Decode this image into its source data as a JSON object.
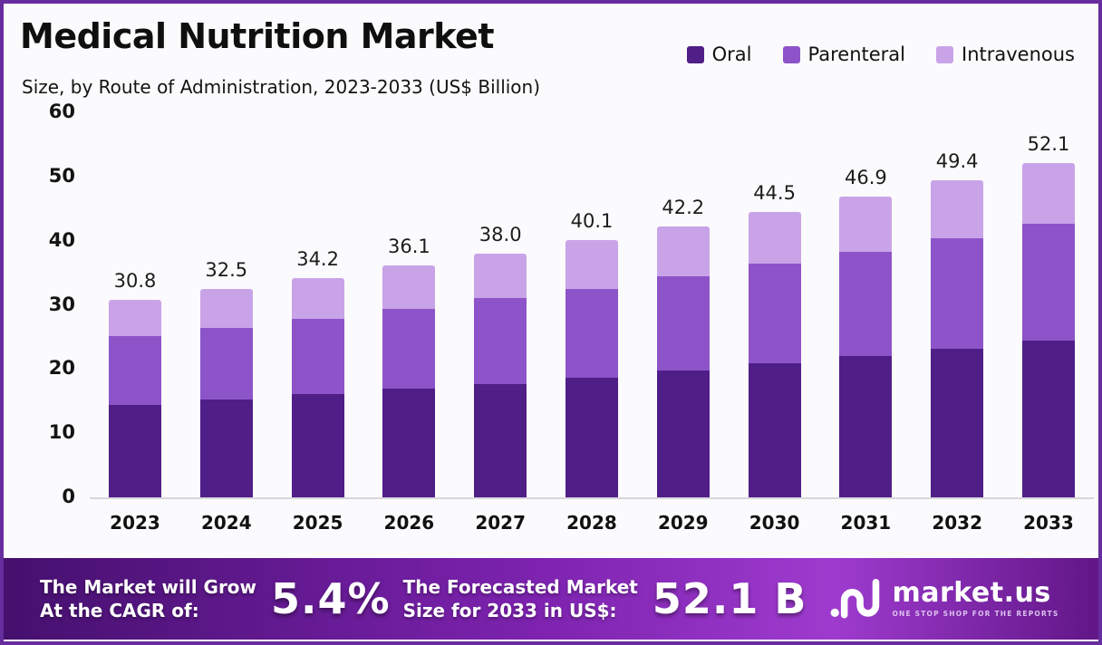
{
  "header": {
    "title": "Medical Nutrition Market",
    "subtitle": "Size, by Route of Administration, 2023-2033 (US$ Billion)"
  },
  "colors": {
    "oral": "#4f1e87",
    "parenteral": "#8d54c9",
    "intravenous": "#c9a3e8",
    "page_border": "#662d9e"
  },
  "chart_data": {
    "type": "bar",
    "stacked": true,
    "title": "Medical Nutrition Market Size, by Route of Administration, 2023-2033 (US$ Billion)",
    "categories": [
      "2023",
      "2024",
      "2025",
      "2026",
      "2027",
      "2028",
      "2029",
      "2030",
      "2031",
      "2032",
      "2033"
    ],
    "series": [
      {
        "name": "Oral",
        "color": "#4f1e87",
        "values": [
          14.4,
          15.2,
          16.1,
          16.9,
          17.6,
          18.7,
          19.7,
          20.9,
          22.0,
          23.2,
          24.4
        ]
      },
      {
        "name": "Parenteral",
        "color": "#8d54c9",
        "values": [
          10.8,
          11.2,
          11.7,
          12.5,
          13.5,
          13.8,
          14.8,
          15.5,
          16.2,
          17.2,
          18.2
        ]
      },
      {
        "name": "Intravenous",
        "color": "#c9a3e8",
        "values": [
          5.6,
          6.1,
          6.4,
          6.7,
          6.9,
          7.6,
          7.7,
          8.1,
          8.7,
          9.0,
          9.5
        ]
      }
    ],
    "totals": [
      30.8,
      32.5,
      34.2,
      36.1,
      38.0,
      40.1,
      42.2,
      44.5,
      46.9,
      49.4,
      52.1
    ],
    "totals_display": [
      "30.8",
      "32.5",
      "34.2",
      "36.1",
      "38.0",
      "40.1",
      "42.2",
      "44.5",
      "46.9",
      "49.4",
      "52.1"
    ],
    "xlabel": "",
    "ylabel": "",
    "ylim": [
      0,
      60
    ],
    "yticks": [
      60,
      50,
      40,
      30,
      20,
      10,
      0
    ],
    "grid": false,
    "legend_position": "top-right",
    "legend": [
      "Oral",
      "Parenteral",
      "Intravenous"
    ]
  },
  "banner": {
    "cagr_label": [
      "The Market will Grow",
      "At the CAGR of:"
    ],
    "cagr_value": "5.4%",
    "forecast_label": [
      "The Forecasted Market",
      "Size for 2033 in US$:"
    ],
    "forecast_value": "52.1 B",
    "brand": "market.us",
    "brand_tagline": "ONE STOP SHOP FOR THE REPORTS"
  }
}
